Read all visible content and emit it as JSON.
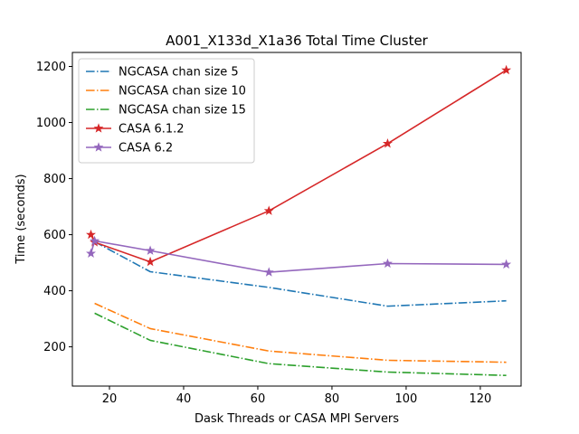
{
  "chart_data": {
    "type": "line",
    "title": "A001_X133d_X1a36 Total Time Cluster",
    "xlabel": "Dask Threads or CASA MPI Servers",
    "ylabel": "Time (seconds)",
    "xlim": [
      10,
      131
    ],
    "ylim": [
      60,
      1250
    ],
    "xticks": [
      20,
      40,
      60,
      80,
      100,
      120
    ],
    "yticks": [
      200,
      400,
      600,
      800,
      1000,
      1200
    ],
    "grid": false,
    "legend_position": "top-left",
    "series": [
      {
        "name": "NGCASA chan size 5",
        "color": "#1f77b4",
        "dash": "dashdot",
        "marker": "none",
        "x": [
          16,
          31,
          63,
          95,
          127
        ],
        "y": [
          575,
          468,
          412,
          345,
          364
        ]
      },
      {
        "name": "NGCASA chan size 10",
        "color": "#ff7f0e",
        "dash": "dashdot",
        "marker": "none",
        "x": [
          16,
          31,
          63,
          95,
          127
        ],
        "y": [
          355,
          265,
          185,
          152,
          145
        ]
      },
      {
        "name": "NGCASA chan size 15",
        "color": "#2ca02c",
        "dash": "dashdot",
        "marker": "none",
        "x": [
          16,
          31,
          63,
          95,
          127
        ],
        "y": [
          320,
          223,
          140,
          110,
          98
        ]
      },
      {
        "name": "CASA 6.1.2",
        "color": "#d62728",
        "dash": "solid",
        "marker": "star",
        "x": [
          15,
          16,
          31,
          63,
          95,
          127
        ],
        "y": [
          600,
          573,
          503,
          685,
          925,
          1187
        ]
      },
      {
        "name": "CASA 6.2",
        "color": "#9467bd",
        "dash": "solid",
        "marker": "star",
        "x": [
          15,
          16,
          31,
          63,
          95,
          127
        ],
        "y": [
          533,
          578,
          543,
          466,
          497,
          494
        ]
      }
    ]
  }
}
